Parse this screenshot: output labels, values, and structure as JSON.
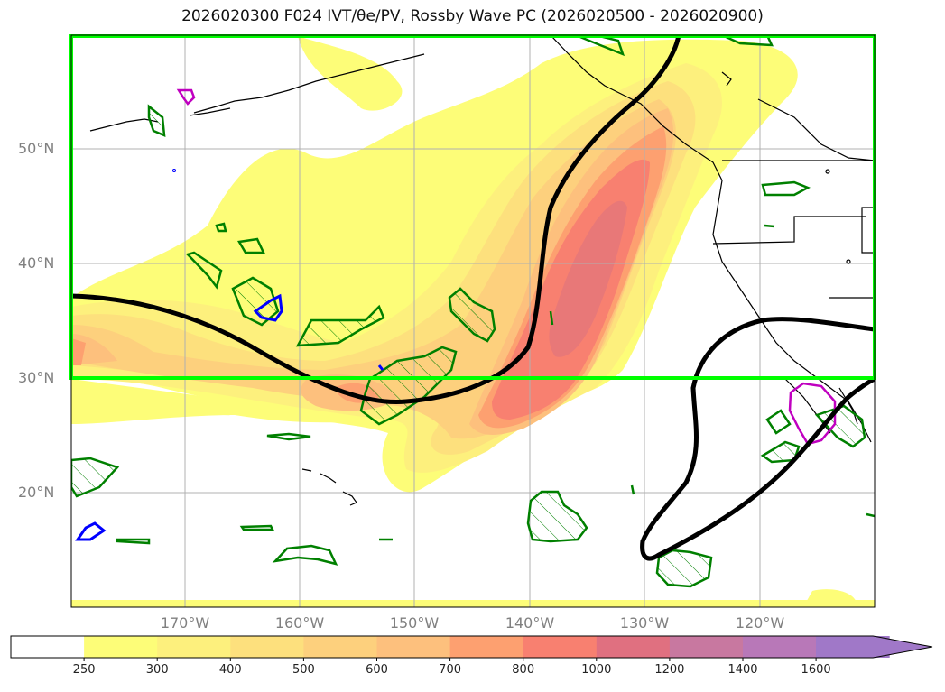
{
  "title": "2026020300 F024 IVT/θe/PV, Rossby Wave PC (2026020500 - 2026020900)",
  "lat_labels": [
    "50°N",
    "40°N",
    "30°N",
    "20°N"
  ],
  "lon_labels": [
    "170°W",
    "160°W",
    "150°W",
    "140°W",
    "130°W",
    "120°W"
  ],
  "colorbar": {
    "ticks": [
      "250",
      "300",
      "400",
      "500",
      "600",
      "700",
      "800",
      "1000",
      "1200",
      "1400",
      "1600"
    ],
    "colors": [
      "#ffffff",
      "#fdfd78",
      "#fdf07d",
      "#fde07d",
      "#fdd07d",
      "#fdc07d",
      "#fda070",
      "#f88070",
      "#e07080",
      "#c878a0",
      "#b878b8",
      "#a078c8"
    ]
  },
  "colors": {
    "highlight_box": "#00ff00",
    "rossby_contour": "#000000",
    "pv_green": "#008000",
    "pv_blue": "#0000ff",
    "pv_magenta": "#c000c0"
  }
}
